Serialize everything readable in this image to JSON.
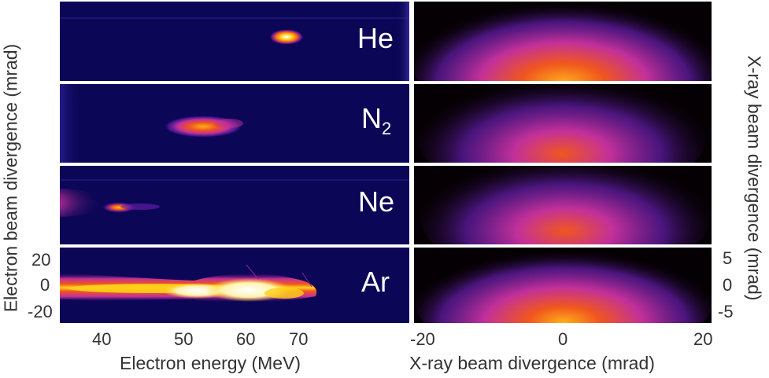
{
  "figure": {
    "gases": [
      {
        "id": "he",
        "main": "He",
        "sub": ""
      },
      {
        "id": "n2",
        "main": "N",
        "sub": "2"
      },
      {
        "id": "ne",
        "main": "Ne",
        "sub": ""
      },
      {
        "id": "ar",
        "main": "Ar",
        "sub": ""
      }
    ],
    "electron": {
      "xlabel": "Electron energy (MeV)",
      "ylabel": "Electron beam divergence (mrad)",
      "xticks": [
        "40",
        "50",
        "60",
        "70"
      ],
      "yticks": [
        "20",
        "0",
        "-20"
      ]
    },
    "xray": {
      "xlabel": "X-ray beam divergence (mrad)",
      "ylabel": "X-ray beam divergence (mrad)",
      "xticks": [
        "-20",
        "0",
        "20"
      ],
      "yticks": [
        "5",
        "0",
        "-5"
      ]
    },
    "colors": {
      "electron_background": "#0c0656",
      "xray_background": "#050003",
      "colormap": [
        "#1a0a6e",
        "#6a1fb0",
        "#c2309a",
        "#f0561e",
        "#ffc21a",
        "#ffffff"
      ]
    }
  }
}
